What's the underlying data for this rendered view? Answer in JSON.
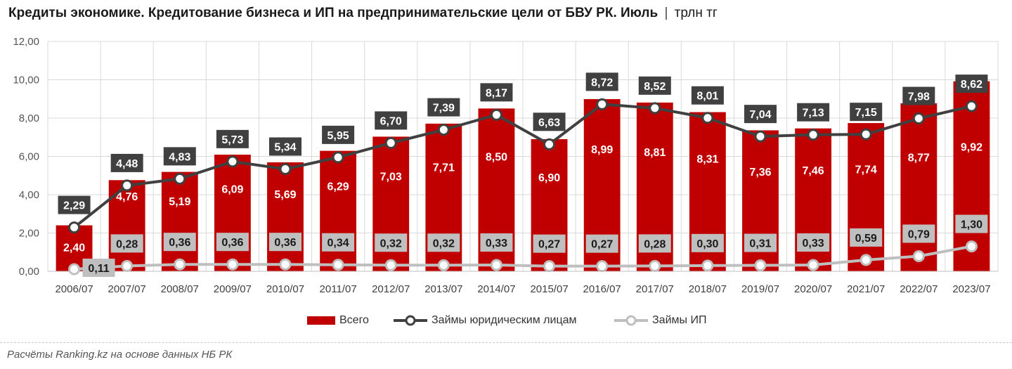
{
  "title": {
    "main": "Кредиты экономике. Кредитование бизнеса и ИП на предпринимательские цели от БВУ РК. Июль",
    "separator": "|",
    "unit": "трлн тг"
  },
  "source": "Расчёты Ranking.kz на основе данных НБ РК",
  "colors": {
    "bar": "#c00000",
    "line_legal": "#404040",
    "line_ip": "#bfbfbf",
    "label_dark_bg": "#404040",
    "label_light_bg": "#bfbfbf",
    "grid": "#d9d9d9"
  },
  "chart_data": {
    "type": "bar",
    "categories": [
      "2006/07",
      "2007/07",
      "2008/07",
      "2009/07",
      "2010/07",
      "2011/07",
      "2012/07",
      "2013/07",
      "2014/07",
      "2015/07",
      "2016/07",
      "2017/07",
      "2018/07",
      "2019/07",
      "2020/07",
      "2021/07",
      "2022/07",
      "2023/07"
    ],
    "ylim": [
      0,
      12
    ],
    "yticks": [
      "0,00",
      "2,00",
      "4,00",
      "6,00",
      "8,00",
      "10,00",
      "12,00"
    ],
    "grid": true,
    "legend_position": "bottom",
    "series": [
      {
        "name": "Всего",
        "type": "bar",
        "values": [
          2.4,
          4.76,
          5.19,
          6.09,
          5.69,
          6.29,
          7.03,
          7.71,
          8.5,
          6.9,
          8.99,
          8.81,
          8.31,
          7.36,
          7.46,
          7.74,
          8.77,
          9.92
        ],
        "labels": [
          "2,40",
          "4,76",
          "5,19",
          "6,09",
          "5,69",
          "6,29",
          "7,03",
          "7,71",
          "8,50",
          "6,90",
          "8,99",
          "8,81",
          "8,31",
          "7,36",
          "7,46",
          "7,74",
          "8,77",
          "9,92"
        ]
      },
      {
        "name": "Займы юридическим лицам",
        "type": "line",
        "values": [
          2.29,
          4.48,
          4.83,
          5.73,
          5.34,
          5.95,
          6.7,
          7.39,
          8.17,
          6.63,
          8.72,
          8.52,
          8.01,
          7.04,
          7.13,
          7.15,
          7.98,
          8.62
        ],
        "labels": [
          "2,29",
          "4,48",
          "4,83",
          "5,73",
          "5,34",
          "5,95",
          "6,70",
          "7,39",
          "8,17",
          "6,63",
          "8,72",
          "8,52",
          "8,01",
          "7,04",
          "7,13",
          "7,15",
          "7,98",
          "8,62"
        ]
      },
      {
        "name": "Займы ИП",
        "type": "line",
        "values": [
          0.11,
          0.28,
          0.36,
          0.36,
          0.36,
          0.34,
          0.32,
          0.32,
          0.33,
          0.27,
          0.27,
          0.28,
          0.3,
          0.31,
          0.33,
          0.59,
          0.79,
          1.3
        ],
        "labels": [
          "0,11",
          "0,28",
          "0,36",
          "0,36",
          "0,36",
          "0,34",
          "0,32",
          "0,32",
          "0,33",
          "0,27",
          "0,27",
          "0,28",
          "0,30",
          "0,31",
          "0,33",
          "0,59",
          "0,79",
          "1,30"
        ]
      }
    ]
  }
}
